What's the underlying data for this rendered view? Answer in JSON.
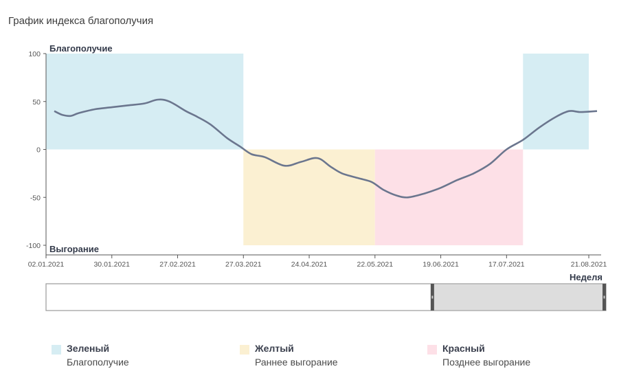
{
  "title": "График индекса благополучия",
  "chart_data": {
    "type": "line",
    "title": "График индекса благополучия",
    "ylim": [
      -100,
      100
    ],
    "y_ticks": [
      100,
      50,
      0,
      -50,
      -100
    ],
    "y_top_label": "Благополучие",
    "y_bottom_label": "Выгорание",
    "xlabel": "Неделя",
    "x_ticks": [
      "02.01.2021",
      "30.01.2021",
      "27.02.2021",
      "27.03.2021",
      "24.04.2021",
      "22.05.2021",
      "19.06.2021",
      "17.07.2021",
      "21.08.2021"
    ],
    "x_tick_weeks": [
      0,
      4,
      8,
      12,
      16,
      20,
      24,
      28,
      33
    ],
    "x_range_weeks": [
      0,
      33.5
    ],
    "zones": [
      {
        "from_week": 0,
        "to_week": 12,
        "y_from": 0,
        "y_to": 100,
        "color": "#d6edf3"
      },
      {
        "from_week": 12,
        "to_week": 20,
        "y_from": -100,
        "y_to": 0,
        "color": "#fbf0d2"
      },
      {
        "from_week": 20,
        "to_week": 29,
        "y_from": -100,
        "y_to": 0,
        "color": "#fde0e7"
      },
      {
        "from_week": 29,
        "to_week": 33,
        "y_from": 0,
        "y_to": 100,
        "color": "#d6edf3"
      }
    ],
    "series": [
      {
        "color": "#6b768e",
        "x": [
          0.5,
          1,
          1.5,
          2,
          3,
          4,
          5,
          6,
          6.8,
          7.5,
          8.5,
          9.2,
          10,
          11,
          11.8,
          12.5,
          13.3,
          14.5,
          15.5,
          16.5,
          17.3,
          18,
          19,
          19.8,
          20.5,
          21.3,
          22,
          23,
          24,
          25,
          26,
          27,
          28,
          29,
          30,
          31,
          31.8,
          32.5,
          33.5
        ],
        "values": [
          40,
          36,
          35,
          38,
          42,
          44,
          46,
          48,
          52,
          50,
          40,
          34,
          26,
          12,
          3,
          -5,
          -8,
          -17,
          -13,
          -9,
          -18,
          -25,
          -30,
          -34,
          -42,
          -48,
          -50,
          -46,
          -40,
          -32,
          -25,
          -15,
          0,
          10,
          23,
          34,
          40,
          39,
          40
        ]
      }
    ],
    "navigator": {
      "selected_from_fraction": 0.69,
      "selected_to_fraction": 1.0
    }
  },
  "legend": [
    {
      "name": "Зеленый",
      "desc": "Благополучие",
      "color": "#d6edf3"
    },
    {
      "name": "Желтый",
      "desc": "Раннее выгорание",
      "color": "#fbf0d2"
    },
    {
      "name": "Красный",
      "desc": "Позднее выгорание",
      "color": "#fde0e7"
    }
  ]
}
